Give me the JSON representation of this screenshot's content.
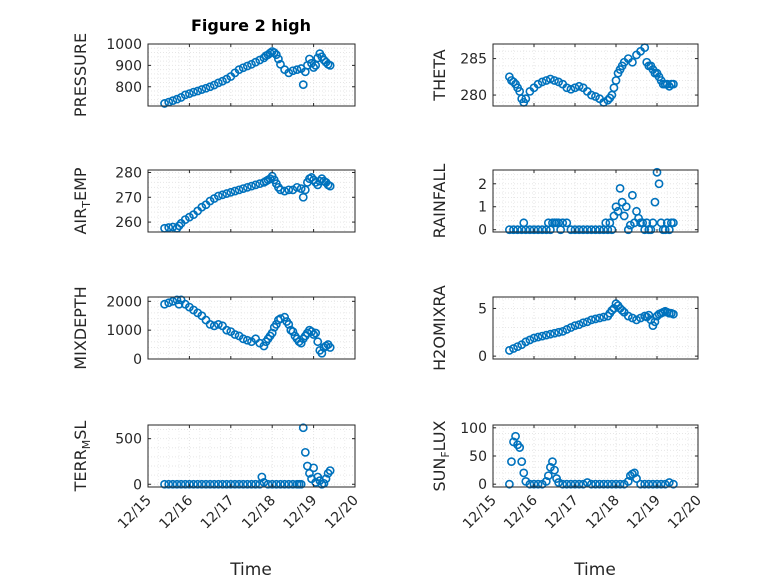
{
  "figure": {
    "title": "Figure 2 high",
    "xlabel": "Time"
  },
  "chart_data": [
    {
      "type": "scatter",
      "title": "Figure 2 high",
      "ylabel_main": "PRESSURE",
      "ylabel_sub": "",
      "ylabel_tail": "",
      "xlim": [
        "12/15",
        "12/20"
      ],
      "ylim": [
        710,
        1000
      ],
      "yticks": [
        800,
        900,
        1000
      ],
      "grid": "on",
      "color": "#0072BD",
      "x": [
        15.4,
        15.5,
        15.6,
        15.7,
        15.8,
        15.9,
        16.0,
        16.1,
        16.2,
        16.3,
        16.4,
        16.5,
        16.6,
        16.7,
        16.8,
        16.9,
        17.0,
        17.1,
        17.2,
        17.3,
        17.4,
        17.5,
        17.6,
        17.7,
        17.8,
        17.85,
        17.9,
        17.95,
        18.0,
        18.05,
        18.1,
        18.15,
        18.2,
        18.3,
        18.4,
        18.5,
        18.6,
        18.7,
        18.75,
        18.8,
        18.85,
        18.9,
        18.95,
        19.0,
        19.05,
        19.1,
        19.15,
        19.2,
        19.25,
        19.3,
        19.35,
        19.4
      ],
      "y": [
        722,
        728,
        735,
        742,
        750,
        762,
        768,
        775,
        780,
        787,
        793,
        800,
        808,
        818,
        826,
        836,
        848,
        865,
        880,
        889,
        897,
        905,
        915,
        925,
        935,
        945,
        950,
        958,
        965,
        960,
        950,
        930,
        905,
        880,
        865,
        875,
        880,
        885,
        810,
        870,
        900,
        930,
        910,
        890,
        900,
        935,
        955,
        940,
        925,
        915,
        905,
        900
      ]
    },
    {
      "type": "scatter",
      "ylabel_main": "THETA",
      "ylabel_sub": "",
      "ylabel_tail": "",
      "xlim": [
        "12/15",
        "12/20"
      ],
      "ylim": [
        278.5,
        287
      ],
      "yticks": [
        280,
        285
      ],
      "grid": "on",
      "color": "#0072BD",
      "x": [
        15.4,
        15.45,
        15.5,
        15.55,
        15.6,
        15.65,
        15.7,
        15.75,
        15.8,
        15.9,
        16.0,
        16.1,
        16.2,
        16.3,
        16.4,
        16.5,
        16.6,
        16.7,
        16.8,
        16.9,
        17.0,
        17.1,
        17.2,
        17.3,
        17.4,
        17.5,
        17.6,
        17.7,
        17.8,
        17.85,
        17.9,
        17.95,
        18.0,
        18.05,
        18.1,
        18.15,
        18.2,
        18.3,
        18.4,
        18.5,
        18.6,
        18.7,
        18.75,
        18.8,
        18.85,
        18.9,
        18.95,
        19.0,
        19.05,
        19.1,
        19.15,
        19.2,
        19.25,
        19.3,
        19.35,
        19.4
      ],
      "y": [
        282.5,
        282.0,
        281.8,
        281.5,
        281.0,
        280.5,
        279.5,
        279.0,
        279.5,
        280.5,
        281.0,
        281.5,
        281.8,
        282.0,
        282.2,
        282.0,
        281.8,
        281.5,
        281.0,
        280.8,
        281.0,
        281.2,
        281.0,
        280.5,
        280.0,
        279.8,
        279.5,
        279.0,
        279.3,
        279.6,
        280.0,
        281.0,
        282.0,
        283.0,
        283.5,
        284.0,
        284.5,
        285.0,
        284.5,
        285.5,
        286.0,
        286.5,
        284.5,
        284.0,
        284.0,
        283.5,
        283.0,
        283.0,
        282.5,
        282.0,
        281.5,
        281.5,
        281.5,
        281.2,
        281.5,
        281.5
      ]
    },
    {
      "type": "scatter",
      "ylabel_main": "AIR",
      "ylabel_sub": "T",
      "ylabel_tail": "EMP",
      "xlim": [
        "12/15",
        "12/20"
      ],
      "ylim": [
        256,
        281
      ],
      "yticks": [
        260,
        270,
        280
      ],
      "grid": "on",
      "color": "#0072BD",
      "x": [
        15.4,
        15.5,
        15.6,
        15.7,
        15.75,
        15.8,
        15.9,
        16.0,
        16.1,
        16.2,
        16.3,
        16.4,
        16.5,
        16.6,
        16.7,
        16.8,
        16.9,
        17.0,
        17.1,
        17.2,
        17.3,
        17.4,
        17.5,
        17.6,
        17.7,
        17.8,
        17.85,
        17.9,
        17.95,
        18.0,
        18.05,
        18.1,
        18.15,
        18.2,
        18.3,
        18.4,
        18.5,
        18.6,
        18.7,
        18.75,
        18.8,
        18.85,
        18.9,
        18.95,
        19.0,
        19.05,
        19.1,
        19.15,
        19.2,
        19.25,
        19.3,
        19.35,
        19.4
      ],
      "y": [
        257.5,
        257.8,
        258,
        257.5,
        258.5,
        259.5,
        261,
        262,
        263,
        264.5,
        266,
        267,
        268.5,
        269.5,
        270.5,
        271,
        271.5,
        272,
        272.5,
        273,
        273.5,
        274,
        274.5,
        275,
        275.5,
        276,
        276.5,
        277,
        277.5,
        278.5,
        277,
        275.5,
        274,
        273,
        272.5,
        273,
        273,
        274,
        273.5,
        270,
        273,
        276,
        277.5,
        278,
        277,
        276,
        275,
        276.5,
        277.5,
        276.5,
        276,
        275,
        274.5
      ]
    },
    {
      "type": "scatter",
      "ylabel_main": "RAINFALL",
      "ylabel_sub": "",
      "ylabel_tail": "",
      "xlim": [
        "12/15",
        "12/20"
      ],
      "ylim": [
        -0.1,
        2.6
      ],
      "yticks": [
        0,
        1,
        2
      ],
      "grid": "on",
      "color": "#0072BD",
      "x": [
        15.4,
        15.5,
        15.6,
        15.7,
        15.75,
        15.8,
        15.9,
        16.0,
        16.1,
        16.2,
        16.3,
        16.35,
        16.4,
        16.45,
        16.5,
        16.55,
        16.6,
        16.65,
        16.7,
        16.8,
        16.9,
        17.0,
        17.1,
        17.2,
        17.3,
        17.4,
        17.5,
        17.6,
        17.7,
        17.75,
        17.8,
        17.85,
        17.9,
        17.95,
        18.0,
        18.05,
        18.1,
        18.15,
        18.2,
        18.25,
        18.3,
        18.35,
        18.4,
        18.45,
        18.5,
        18.55,
        18.6,
        18.65,
        18.7,
        18.75,
        18.8,
        18.85,
        18.9,
        18.95,
        19.0,
        19.05,
        19.1,
        19.15,
        19.2,
        19.25,
        19.3,
        19.35,
        19.4
      ],
      "y": [
        0,
        0,
        0,
        0,
        0.3,
        0,
        0,
        0,
        0,
        0,
        0,
        0.3,
        0,
        0.3,
        0.3,
        0.3,
        0.3,
        0,
        0.3,
        0.3,
        0,
        0,
        0,
        0,
        0,
        0,
        0,
        0,
        0,
        0.3,
        0,
        0.3,
        0,
        0.6,
        1.0,
        0.8,
        1.8,
        1.2,
        0.6,
        1.0,
        0,
        0.2,
        1.5,
        0.3,
        0.8,
        0.5,
        0.3,
        0.3,
        0,
        0.3,
        0,
        0,
        0.3,
        1.2,
        2.5,
        2.0,
        0.3,
        0,
        0,
        0.3,
        0,
        0.3,
        0.3
      ]
    },
    {
      "type": "scatter",
      "ylabel_main": "MIXDEPTH",
      "ylabel_sub": "",
      "ylabel_tail": "",
      "xlim": [
        "12/15",
        "12/20"
      ],
      "ylim": [
        0,
        2150
      ],
      "yticks": [
        0,
        1000,
        2000
      ],
      "grid": "on",
      "color": "#0072BD",
      "x": [
        15.4,
        15.5,
        15.6,
        15.7,
        15.75,
        15.8,
        15.9,
        16.0,
        16.1,
        16.2,
        16.3,
        16.4,
        16.5,
        16.6,
        16.7,
        16.8,
        16.9,
        17.0,
        17.1,
        17.2,
        17.3,
        17.4,
        17.5,
        17.6,
        17.7,
        17.8,
        17.85,
        17.9,
        17.95,
        18.0,
        18.05,
        18.1,
        18.15,
        18.2,
        18.3,
        18.35,
        18.4,
        18.45,
        18.5,
        18.55,
        18.6,
        18.65,
        18.7,
        18.75,
        18.8,
        18.85,
        18.9,
        18.95,
        19.0,
        19.05,
        19.1,
        19.15,
        19.2,
        19.25,
        19.3,
        19.35,
        19.4
      ],
      "y": [
        1900,
        1950,
        2000,
        2050,
        1900,
        2050,
        1900,
        1800,
        1700,
        1600,
        1500,
        1350,
        1200,
        1150,
        1200,
        1150,
        1000,
        950,
        850,
        800,
        700,
        650,
        600,
        700,
        550,
        450,
        600,
        700,
        800,
        900,
        1100,
        1200,
        1350,
        1400,
        1450,
        1300,
        1200,
        1000,
        950,
        800,
        700,
        600,
        550,
        700,
        800,
        900,
        1000,
        950,
        850,
        900,
        600,
        300,
        200,
        400,
        450,
        500,
        400
      ]
    },
    {
      "type": "scatter",
      "ylabel_main": "H2OMIXRA",
      "ylabel_sub": "",
      "ylabel_tail": "",
      "xlim": [
        "12/15",
        "12/20"
      ],
      "ylim": [
        -0.3,
        6.2
      ],
      "yticks": [
        0,
        5
      ],
      "grid": "on",
      "color": "#0072BD",
      "x": [
        15.4,
        15.5,
        15.6,
        15.7,
        15.8,
        15.9,
        16.0,
        16.1,
        16.2,
        16.3,
        16.4,
        16.5,
        16.6,
        16.7,
        16.8,
        16.9,
        17.0,
        17.1,
        17.2,
        17.3,
        17.4,
        17.5,
        17.6,
        17.7,
        17.8,
        17.85,
        17.9,
        17.95,
        18.0,
        18.05,
        18.1,
        18.15,
        18.2,
        18.3,
        18.4,
        18.5,
        18.6,
        18.7,
        18.75,
        18.8,
        18.85,
        18.9,
        18.95,
        19.0,
        19.05,
        19.1,
        19.15,
        19.2,
        19.25,
        19.3,
        19.35,
        19.4
      ],
      "y": [
        0.6,
        0.8,
        1.0,
        1.2,
        1.5,
        1.7,
        1.9,
        2.0,
        2.1,
        2.2,
        2.3,
        2.4,
        2.5,
        2.6,
        2.8,
        3.0,
        3.2,
        3.3,
        3.5,
        3.6,
        3.8,
        3.9,
        4.0,
        4.1,
        4.2,
        4.5,
        4.8,
        5.0,
        5.5,
        5.3,
        5.0,
        4.8,
        4.6,
        4.2,
        4.0,
        3.8,
        4.0,
        4.2,
        4.1,
        4.3,
        3.8,
        3.2,
        3.6,
        4.2,
        4.4,
        4.5,
        4.6,
        4.7,
        4.6,
        4.5,
        4.5,
        4.4
      ]
    },
    {
      "type": "scatter",
      "ylabel_main": "TERR",
      "ylabel_sub": "M",
      "ylabel_tail": "SL",
      "xlim": [
        "12/15",
        "12/20"
      ],
      "ylim": [
        -30,
        650
      ],
      "yticks": [
        0,
        500
      ],
      "grid": "on",
      "color": "#0072BD",
      "x": [
        15.4,
        15.5,
        15.6,
        15.7,
        15.8,
        15.9,
        16.0,
        16.1,
        16.2,
        16.3,
        16.4,
        16.5,
        16.6,
        16.7,
        16.8,
        16.9,
        17.0,
        17.1,
        17.2,
        17.3,
        17.4,
        17.5,
        17.6,
        17.7,
        17.75,
        17.8,
        17.9,
        18.0,
        18.1,
        18.2,
        18.3,
        18.4,
        18.5,
        18.6,
        18.65,
        18.7,
        18.75,
        18.8,
        18.85,
        18.9,
        18.95,
        19.0,
        19.05,
        19.1,
        19.15,
        19.2,
        19.25,
        19.3,
        19.35,
        19.4
      ],
      "y": [
        0,
        0,
        0,
        0,
        0,
        0,
        0,
        0,
        0,
        0,
        0,
        0,
        0,
        0,
        0,
        0,
        0,
        0,
        0,
        0,
        0,
        0,
        0,
        0,
        80,
        20,
        0,
        0,
        0,
        0,
        0,
        0,
        0,
        0,
        0,
        0,
        620,
        350,
        200,
        120,
        60,
        180,
        20,
        80,
        40,
        0,
        10,
        60,
        120,
        150
      ]
    },
    {
      "type": "scatter",
      "ylabel_main": "SUN",
      "ylabel_sub": "F",
      "ylabel_tail": "LUX",
      "xlim": [
        "12/15",
        "12/20"
      ],
      "ylim": [
        -5,
        105
      ],
      "yticks": [
        0,
        50,
        100
      ],
      "grid": "on",
      "color": "#0072BD",
      "x": [
        15.4,
        15.45,
        15.5,
        15.55,
        15.6,
        15.65,
        15.7,
        15.75,
        15.8,
        15.9,
        16.0,
        16.1,
        16.2,
        16.3,
        16.35,
        16.4,
        16.45,
        16.5,
        16.55,
        16.6,
        16.7,
        16.8,
        16.9,
        17.0,
        17.1,
        17.2,
        17.3,
        17.4,
        17.5,
        17.6,
        17.7,
        17.8,
        17.9,
        18.0,
        18.1,
        18.2,
        18.3,
        18.35,
        18.4,
        18.45,
        18.5,
        18.6,
        18.7,
        18.8,
        18.9,
        19.0,
        19.1,
        19.2,
        19.3,
        19.4
      ],
      "y": [
        0,
        40,
        75,
        85,
        70,
        65,
        40,
        20,
        5,
        0,
        0,
        0,
        0,
        5,
        15,
        30,
        40,
        25,
        10,
        3,
        0,
        0,
        0,
        0,
        0,
        0,
        3,
        0,
        0,
        0,
        0,
        0,
        0,
        0,
        0,
        0,
        5,
        15,
        18,
        20,
        10,
        0,
        0,
        0,
        0,
        0,
        0,
        0,
        3,
        0
      ]
    }
  ],
  "xticks": [
    "12/15",
    "12/16",
    "12/17",
    "12/18",
    "12/19",
    "12/20"
  ]
}
